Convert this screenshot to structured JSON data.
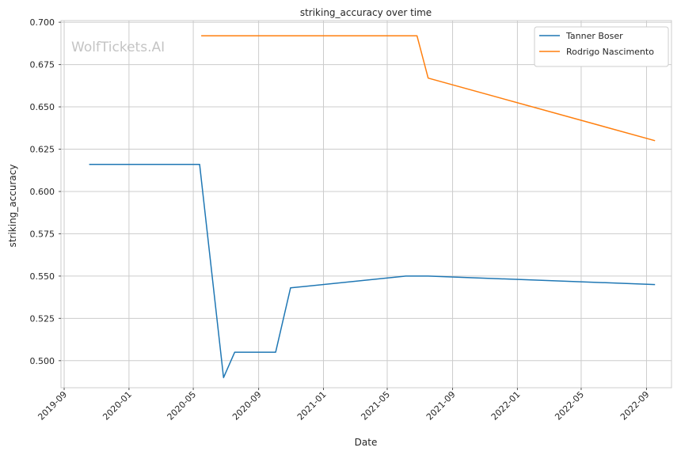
{
  "chart_data": {
    "type": "line",
    "title": "striking_accuracy over time",
    "xlabel": "Date",
    "ylabel": "striking_accuracy",
    "watermark": "WolfTickets.AI",
    "xlim": [
      "2019-08-26",
      "2022-10-18"
    ],
    "ylim": [
      0.484,
      0.701
    ],
    "x_ticks": [
      "2019-09",
      "2020-01",
      "2020-05",
      "2020-09",
      "2021-01",
      "2021-05",
      "2021-09",
      "2022-01",
      "2022-05",
      "2022-09"
    ],
    "y_ticks": [
      "0.500",
      "0.525",
      "0.550",
      "0.575",
      "0.600",
      "0.625",
      "0.650",
      "0.675",
      "0.700"
    ],
    "grid": true,
    "legend_position": "top-right",
    "series": [
      {
        "name": "Tanner Boser",
        "color": "#1f77b4",
        "points": [
          [
            "2019-10-18",
            0.616
          ],
          [
            "2020-05-13",
            0.616
          ],
          [
            "2020-06-27",
            0.49
          ],
          [
            "2020-07-18",
            0.505
          ],
          [
            "2020-10-03",
            0.505
          ],
          [
            "2020-10-31",
            0.543
          ],
          [
            "2021-06-05",
            0.55
          ],
          [
            "2021-07-17",
            0.55
          ],
          [
            "2022-09-17",
            0.545
          ]
        ]
      },
      {
        "name": "Rodrigo Nascimento",
        "color": "#ff7f0e",
        "points": [
          [
            "2020-05-16",
            0.692
          ],
          [
            "2021-06-26",
            0.692
          ],
          [
            "2021-07-17",
            0.667
          ],
          [
            "2022-09-17",
            0.63
          ]
        ]
      }
    ]
  }
}
